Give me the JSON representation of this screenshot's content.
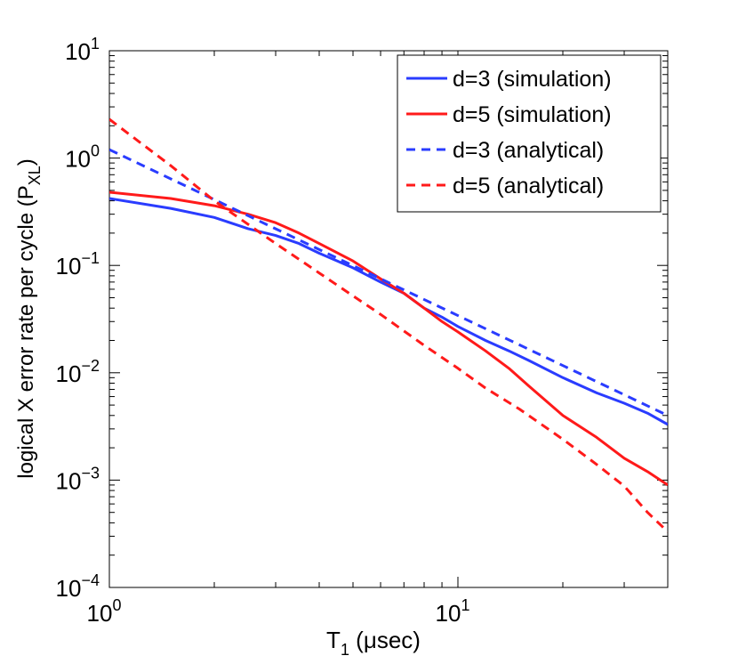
{
  "chart_data": {
    "type": "line",
    "title": "",
    "xlabel_main": "T",
    "xlabel_sub": "1",
    "xlabel_unit": " (μsec)",
    "ylabel_main": "logical X error rate per cycle (P",
    "ylabel_sub": "XL",
    "ylabel_close": ")",
    "x_scale": "log",
    "y_scale": "log",
    "xlim": [
      1,
      40
    ],
    "ylim": [
      0.0001,
      10
    ],
    "grid": false,
    "legend_position": "top-right",
    "x_ticks": [
      {
        "value": 1,
        "base": "10",
        "exp": "0"
      },
      {
        "value": 10,
        "base": "10",
        "exp": "1"
      }
    ],
    "y_ticks": [
      {
        "value": 10,
        "base": "10",
        "exp": "1"
      },
      {
        "value": 1,
        "base": "10",
        "exp": "0"
      },
      {
        "value": 0.1,
        "base": "10",
        "exp": "−1"
      },
      {
        "value": 0.01,
        "base": "10",
        "exp": "−2"
      },
      {
        "value": 0.001,
        "base": "10",
        "exp": "−3"
      },
      {
        "value": 0.0001,
        "base": "10",
        "exp": "−4"
      }
    ],
    "series": [
      {
        "name": "d=3 (simulation)",
        "color": "#2a3cff",
        "dash": "solid",
        "x": [
          1,
          1.5,
          2,
          2.5,
          3,
          3.5,
          4,
          5,
          6,
          7,
          8,
          9,
          10,
          12,
          14,
          16,
          20,
          25,
          30,
          35,
          40
        ],
        "y": [
          0.42,
          0.34,
          0.28,
          0.22,
          0.19,
          0.16,
          0.13,
          0.095,
          0.07,
          0.055,
          0.04,
          0.033,
          0.027,
          0.02,
          0.016,
          0.013,
          0.009,
          0.0065,
          0.0052,
          0.0042,
          0.0033
        ]
      },
      {
        "name": "d=5 (simulation)",
        "color": "#ff1a1a",
        "dash": "solid",
        "x": [
          1,
          1.5,
          2,
          2.5,
          3,
          3.5,
          4,
          5,
          6,
          7,
          8,
          9,
          10,
          12,
          14,
          16,
          20,
          25,
          30,
          35,
          40
        ],
        "y": [
          0.48,
          0.42,
          0.36,
          0.3,
          0.25,
          0.2,
          0.16,
          0.11,
          0.075,
          0.055,
          0.04,
          0.03,
          0.024,
          0.016,
          0.011,
          0.0075,
          0.004,
          0.0025,
          0.0016,
          0.0012,
          0.0009
        ]
      },
      {
        "name": "d=3 (analytical)",
        "color": "#2a3cff",
        "dash": "dashed",
        "x": [
          1,
          40
        ],
        "y": [
          1.2,
          0.004
        ]
      },
      {
        "name": "d=5 (analytical)",
        "color": "#ff1a1a",
        "dash": "dashed",
        "x": [
          1,
          1.5,
          2,
          3,
          4,
          5,
          6,
          8,
          10,
          12,
          15,
          20,
          25,
          30,
          35,
          40
        ],
        "y": [
          2.3,
          0.85,
          0.4,
          0.16,
          0.085,
          0.052,
          0.035,
          0.018,
          0.011,
          0.0072,
          0.0046,
          0.0024,
          0.0014,
          0.00088,
          0.0005,
          0.00033
        ]
      }
    ]
  }
}
